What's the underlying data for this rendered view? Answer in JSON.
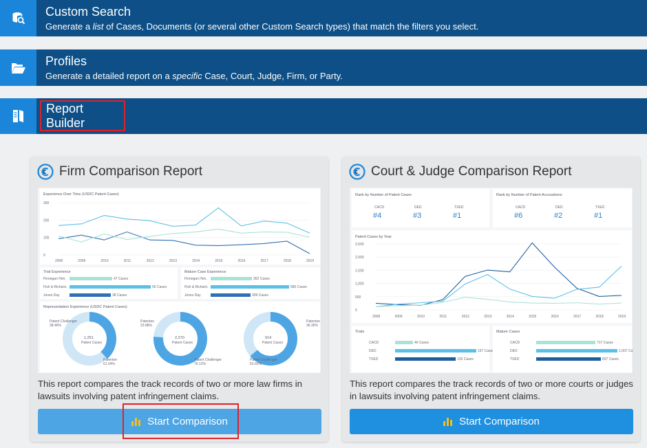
{
  "nav": {
    "custom_search": {
      "icon": "database-search-icon",
      "title": "Custom Search",
      "sub_before": "Generate a ",
      "sub_italic": "list",
      "sub_after": " of Cases, Documents (or several other Custom Search types) that match the filters you select."
    },
    "profiles": {
      "icon": "folder-open-icon",
      "title": "Profiles",
      "sub_before": "Generate a detailed report on a ",
      "sub_italic": "specific",
      "sub_after": " Case, Court, Judge, Firm, or Party."
    },
    "report_builder": {
      "icon": "report-book-icon",
      "title": "Report Builder"
    }
  },
  "cards": {
    "firm": {
      "title": "Firm Comparison Report",
      "description": "This report compares the track records of two or more law firms in lawsuits involving patent infringement claims.",
      "button": "Start Comparison",
      "preview": {
        "line_title": "Experience Over Time (USDC Patent Cases)",
        "line_years": [
          "2008",
          "2009",
          "2010",
          "2011",
          "2012",
          "2013",
          "2014",
          "2015",
          "2016",
          "2017",
          "2018",
          "2019"
        ],
        "y_ticks": [
          "300",
          "200",
          "100",
          "0"
        ],
        "trial_title": "Trial Experience",
        "trial_rows": [
          {
            "name": "Finnegan Hen.",
            "value": "47 Cases"
          },
          {
            "name": "Fish & Richard.",
            "value": "56 Cases"
          },
          {
            "name": "Jones Day",
            "value": "38 Cases"
          }
        ],
        "mature_title": "Mature Case Experience",
        "mature_rows": [
          {
            "name": "Finnegan Hen.",
            "value": "362 Cases"
          },
          {
            "name": "Fish & Richard.",
            "value": "680 Cases"
          },
          {
            "name": "Jones Day",
            "value": "309 Cases"
          }
        ],
        "rep_title": "Representation Experience (USDC Patent Cases)",
        "donuts": [
          {
            "total": "1,251",
            "unit": "Patent Cases",
            "label_a": "Patent Challenger",
            "pct_a": "38.46%",
            "label_b": "Patentee",
            "pct_b": "61.54%",
            "fraction_a": 0.3846
          },
          {
            "total": "2,270",
            "unit": "Patent Cases",
            "label_a": "Patentee",
            "pct_a": "23.88%",
            "label_b": "Patent Challenger",
            "pct_b": "76.12%",
            "fraction_a": 0.2388
          },
          {
            "total": "914",
            "unit": "Patent Cases",
            "label_a": "Patentee",
            "pct_a": "36.35%",
            "label_b": "Patent Challenger",
            "pct_b": "63.65%",
            "fraction_a": 0.3635
          }
        ]
      }
    },
    "court": {
      "title": "Court & Judge Comparison Report",
      "description": "This report compares the track records of two or more courts or judges in lawsuits involving patent infringement claims.",
      "button": "Start Comparison",
      "preview": {
        "rank_cases_title": "Rank by Number of Patent Cases",
        "rank_cases": [
          {
            "court": "CACD",
            "rank": "#4"
          },
          {
            "court": "DED",
            "rank": "#3"
          },
          {
            "court": "TXED",
            "rank": "#1"
          }
        ],
        "rank_acc_title": "Rank by Number of Patent Accusations",
        "rank_acc": [
          {
            "court": "CACD",
            "rank": "#6"
          },
          {
            "court": "DED",
            "rank": "#2"
          },
          {
            "court": "TXED",
            "rank": "#1"
          }
        ],
        "line_title": "Patent Cases by Year",
        "line_years": [
          "2008",
          "2009",
          "2010",
          "2011",
          "2012",
          "2013",
          "2014",
          "2015",
          "2016",
          "2017",
          "2018",
          "2019"
        ],
        "y_ticks": [
          "2,500",
          "2,000",
          "1,500",
          "1,000",
          "500",
          "0"
        ],
        "trials_title": "Trials",
        "trials": [
          {
            "court": "CACD",
            "value": "40 Cases"
          },
          {
            "court": "DED",
            "value": "167 Cases"
          },
          {
            "court": "TXED",
            "value": "126 Cases"
          }
        ],
        "mature_title": "Mature Cases",
        "mature": [
          {
            "court": "CACD",
            "value": "717 Cases"
          },
          {
            "court": "DED",
            "value": "1,007 Cases"
          },
          {
            "court": "TXED",
            "value": "837 Cases"
          }
        ]
      }
    }
  },
  "colors": {
    "nav_bg": "#0d4f86",
    "nav_icon_bg": "#1b86d9",
    "highlight": "#e0202a",
    "button1": "#4ea5e3",
    "button2": "#1f90e0"
  }
}
